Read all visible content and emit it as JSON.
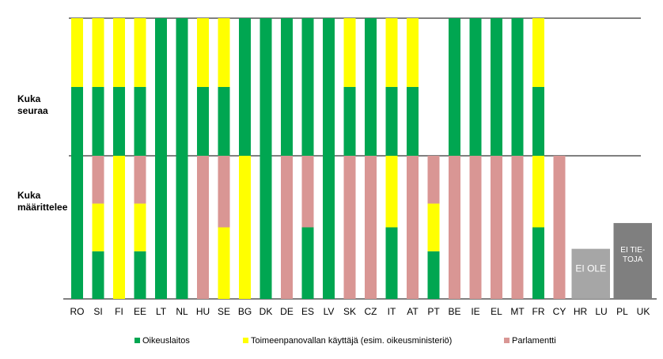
{
  "chart_data": {
    "type": "bar",
    "row_labels": [
      {
        "line1": "Kuka",
        "line2": "seuraa"
      },
      {
        "line1": "Kuka",
        "line2": "määrittelee"
      }
    ],
    "categories": [
      "RO",
      "SI",
      "FI",
      "EE",
      "LT",
      "NL",
      "HU",
      "SE",
      "BG",
      "DK",
      "DE",
      "ES",
      "LV",
      "SK",
      "CZ",
      "IT",
      "AT",
      "PT",
      "BE",
      "IE",
      "EL",
      "MT",
      "FR",
      "CY",
      "HR",
      "LU",
      "PL",
      "UK"
    ],
    "series": [
      {
        "name": "Oikeuslaitos",
        "color": "#00a651"
      },
      {
        "name": "Toimeenpanovallan käyttäjä (esim. oikeusministeriö)",
        "color": "#ffff00"
      },
      {
        "name": "Parlamentti",
        "color": "#d99694"
      }
    ],
    "seuraa": [
      [
        {
          "s": 0,
          "v": 0.5
        },
        {
          "s": 1,
          "v": 0.5
        }
      ],
      [
        {
          "s": 0,
          "v": 0.5
        },
        {
          "s": 1,
          "v": 0.5
        }
      ],
      [
        {
          "s": 0,
          "v": 0.5
        },
        {
          "s": 1,
          "v": 0.5
        }
      ],
      [
        {
          "s": 0,
          "v": 0.5
        },
        {
          "s": 1,
          "v": 0.5
        }
      ],
      [
        {
          "s": 0,
          "v": 1
        }
      ],
      [
        {
          "s": 0,
          "v": 1
        }
      ],
      [
        {
          "s": 0,
          "v": 0.5
        },
        {
          "s": 1,
          "v": 0.5
        }
      ],
      [
        {
          "s": 0,
          "v": 0.5
        },
        {
          "s": 1,
          "v": 0.5
        }
      ],
      [
        {
          "s": 0,
          "v": 1
        }
      ],
      [
        {
          "s": 0,
          "v": 1
        }
      ],
      [
        {
          "s": 0,
          "v": 1
        }
      ],
      [
        {
          "s": 0,
          "v": 1
        }
      ],
      [
        {
          "s": 0,
          "v": 1
        }
      ],
      [
        {
          "s": 0,
          "v": 0.5
        },
        {
          "s": 1,
          "v": 0.5
        }
      ],
      [
        {
          "s": 0,
          "v": 1
        }
      ],
      [
        {
          "s": 0,
          "v": 0.5
        },
        {
          "s": 1,
          "v": 0.5
        }
      ],
      [
        {
          "s": 0,
          "v": 0.5
        },
        {
          "s": 1,
          "v": 0.5
        }
      ],
      [],
      [
        {
          "s": 0,
          "v": 1
        }
      ],
      [
        {
          "s": 0,
          "v": 1
        }
      ],
      [
        {
          "s": 0,
          "v": 1
        }
      ],
      [
        {
          "s": 0,
          "v": 1
        }
      ],
      [
        {
          "s": 0,
          "v": 0.5
        },
        {
          "s": 1,
          "v": 0.5
        }
      ],
      [],
      [],
      [],
      [],
      []
    ],
    "maarittelee": [
      [
        {
          "s": 0,
          "v": 1
        }
      ],
      [
        {
          "s": 0,
          "v": 0.333
        },
        {
          "s": 1,
          "v": 0.333
        },
        {
          "s": 2,
          "v": 0.334
        }
      ],
      [
        {
          "s": 1,
          "v": 1
        }
      ],
      [
        {
          "s": 0,
          "v": 0.333
        },
        {
          "s": 1,
          "v": 0.333
        },
        {
          "s": 2,
          "v": 0.334
        }
      ],
      [
        {
          "s": 0,
          "v": 1
        }
      ],
      [
        {
          "s": 0,
          "v": 1
        }
      ],
      [
        {
          "s": 2,
          "v": 1
        }
      ],
      [
        {
          "s": 1,
          "v": 0.5
        },
        {
          "s": 2,
          "v": 0.5
        }
      ],
      [
        {
          "s": 1,
          "v": 1
        }
      ],
      [
        {
          "s": 0,
          "v": 1
        }
      ],
      [
        {
          "s": 2,
          "v": 1
        }
      ],
      [
        {
          "s": 0,
          "v": 0.5
        },
        {
          "s": 2,
          "v": 0.5
        }
      ],
      [
        {
          "s": 0,
          "v": 1
        }
      ],
      [
        {
          "s": 2,
          "v": 1
        }
      ],
      [
        {
          "s": 2,
          "v": 1
        }
      ],
      [
        {
          "s": 0,
          "v": 0.5
        },
        {
          "s": 1,
          "v": 0.5
        }
      ],
      [
        {
          "s": 2,
          "v": 1
        }
      ],
      [
        {
          "s": 0,
          "v": 0.333
        },
        {
          "s": 1,
          "v": 0.333
        },
        {
          "s": 2,
          "v": 0.334
        }
      ],
      [
        {
          "s": 2,
          "v": 1
        }
      ],
      [
        {
          "s": 2,
          "v": 1
        }
      ],
      [
        {
          "s": 2,
          "v": 1
        }
      ],
      [
        {
          "s": 2,
          "v": 1
        }
      ],
      [
        {
          "s": 0,
          "v": 0.5
        },
        {
          "s": 1,
          "v": 0.5
        }
      ],
      [
        {
          "s": 2,
          "v": 1
        }
      ],
      [],
      [],
      [],
      []
    ],
    "annotations": [
      {
        "label": "EI OLE",
        "categories": [
          "HR",
          "LU"
        ],
        "level": 0.35,
        "color": "#a6a6a6"
      },
      {
        "label_lines": [
          "EI TIE-",
          "TOJA"
        ],
        "categories": [
          "PL",
          "UK"
        ],
        "level": 0.53,
        "color": "#7f7f7f"
      }
    ]
  }
}
